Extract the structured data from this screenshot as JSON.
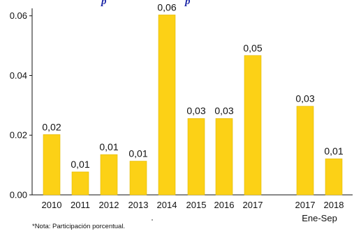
{
  "title_fragment": "p                              p",
  "note": "*Nota: Participación porcentual.",
  "colors": {
    "bar": "#fcd116",
    "bar_stroke": "#e0b800",
    "axis": "#111111",
    "title": "#1f2aa8"
  },
  "chart_data": {
    "type": "bar",
    "categories": [
      "2010",
      "2011",
      "2012",
      "2013",
      "2014",
      "2015",
      "2016",
      "2017",
      "2017",
      "2018"
    ],
    "values": [
      0.0202,
      0.0077,
      0.0135,
      0.0113,
      0.0603,
      0.0256,
      0.0256,
      0.0467,
      0.0297,
      0.0121
    ],
    "data_labels": [
      "0,02",
      "0,01",
      "0,01",
      "0,01",
      "0,06",
      "0,03",
      "0,03",
      "0,05",
      "0,03",
      "0,01"
    ],
    "group_label": "Ene-Sep",
    "group_members": [
      8,
      9
    ],
    "yticks": [
      "0.00",
      "0.02",
      "0.04",
      "0.06"
    ],
    "ytick_values": [
      0,
      0.02,
      0.04,
      0.06
    ],
    "ylim": [
      0,
      0.0625
    ],
    "grid": false,
    "xlabel": "",
    "ylabel": ""
  }
}
